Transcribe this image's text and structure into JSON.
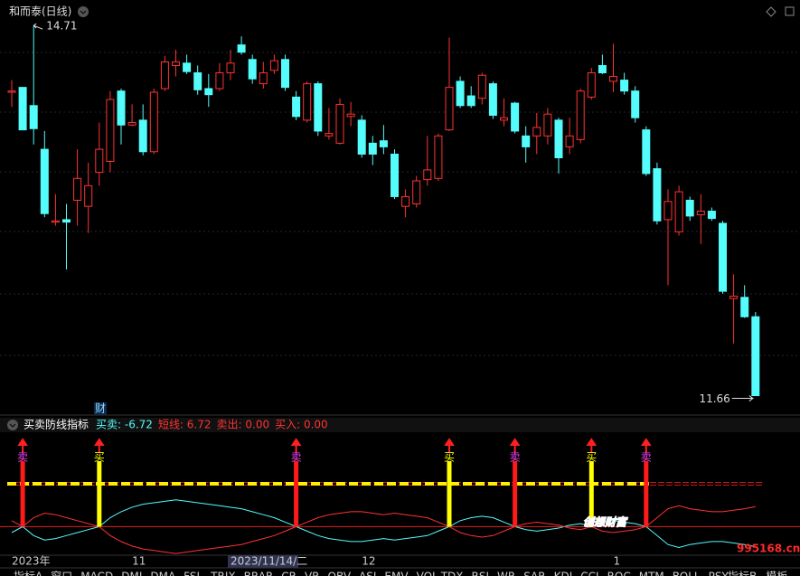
{
  "header": {
    "title": "和而泰(日线)",
    "badge": "财"
  },
  "chart_data": [
    {
      "type": "candlestick",
      "categories": [
        "2023年",
        null,
        null,
        null,
        null,
        null,
        null,
        null,
        null,
        null,
        null,
        "11",
        null,
        null,
        null,
        null,
        null,
        null,
        null,
        null,
        "2023/11/14/二",
        null,
        null,
        null,
        null,
        null,
        null,
        null,
        null,
        null,
        null,
        null,
        "12",
        null,
        null,
        null,
        null,
        null,
        null,
        null,
        null,
        null,
        null,
        null,
        null,
        null,
        null,
        null,
        null,
        null,
        null,
        null,
        null,
        null,
        null,
        "1",
        null,
        null,
        null,
        null,
        null,
        null,
        null,
        null,
        null,
        null,
        null,
        null,
        null
      ],
      "highlight_category": 20,
      "open": [
        14.16,
        14.2,
        14.05,
        13.69,
        13.09,
        13.11,
        13.27,
        13.22,
        13.5,
        13.59,
        14.17,
        13.89,
        13.93,
        13.67,
        14.19,
        14.38,
        14.4,
        14.32,
        14.19,
        14.19,
        14.32,
        14.55,
        14.43,
        14.23,
        14.34,
        14.43,
        14.12,
        13.93,
        14.23,
        13.8,
        13.74,
        13.96,
        13.93,
        13.74,
        13.76,
        13.65,
        13.22,
        13.24,
        13.44,
        13.45,
        13.85,
        14.25,
        14.13,
        14.11,
        14.23,
        13.93,
        14.07,
        13.8,
        13.8,
        13.8,
        13.93,
        13.71,
        13.77,
        14.12,
        14.38,
        14.25,
        14.26,
        14.17,
        13.85,
        13.53,
        13.11,
        13.01,
        13.27,
        13.15,
        13.18,
        13.08,
        12.46,
        12.47,
        12.31
      ],
      "close": [
        14.17,
        13.85,
        13.86,
        13.16,
        13.1,
        13.09,
        13.45,
        13.39,
        13.69,
        14.1,
        13.89,
        13.91,
        13.67,
        14.16,
        14.41,
        14.41,
        14.33,
        14.18,
        14.14,
        14.32,
        14.4,
        14.49,
        14.27,
        14.32,
        14.42,
        14.2,
        13.96,
        14.23,
        13.84,
        13.82,
        14.06,
        13.98,
        13.65,
        13.65,
        13.71,
        13.3,
        13.3,
        13.43,
        13.52,
        13.8,
        14.2,
        14.05,
        14.05,
        14.3,
        13.97,
        13.95,
        13.84,
        13.71,
        13.87,
        13.98,
        13.62,
        13.8,
        14.17,
        14.32,
        14.32,
        14.29,
        14.17,
        13.95,
        13.49,
        13.1,
        13.26,
        13.34,
        13.14,
        13.18,
        13.12,
        12.52,
        12.48,
        12.31,
        11.66
      ],
      "high": [
        14.26,
        14.2,
        14.71,
        13.84,
        13.32,
        13.24,
        13.69,
        13.58,
        13.91,
        14.17,
        14.19,
        14.06,
        14.06,
        14.19,
        14.46,
        14.51,
        14.47,
        14.38,
        14.31,
        14.4,
        14.51,
        14.62,
        14.47,
        14.41,
        14.47,
        14.47,
        14.17,
        14.25,
        14.25,
        14.03,
        14.11,
        14.08,
        13.97,
        13.8,
        13.89,
        13.69,
        13.36,
        13.47,
        13.8,
        13.82,
        14.61,
        14.29,
        14.21,
        14.32,
        14.25,
        14.11,
        14.08,
        13.88,
        13.99,
        14.03,
        13.95,
        13.95,
        14.19,
        14.36,
        14.47,
        14.56,
        14.32,
        14.21,
        13.88,
        13.58,
        13.36,
        13.39,
        13.3,
        13.32,
        13.21,
        13.1,
        12.66,
        12.57,
        12.35
      ],
      "low": [
        14.04,
        13.85,
        13.73,
        13.13,
        13.06,
        12.7,
        13.06,
        13.0,
        13.39,
        13.5,
        13.73,
        13.88,
        13.64,
        13.65,
        14.17,
        14.29,
        14.31,
        14.14,
        14.04,
        14.17,
        14.26,
        14.47,
        14.23,
        14.19,
        14.31,
        14.17,
        13.93,
        13.91,
        13.8,
        13.77,
        13.73,
        13.88,
        13.62,
        13.56,
        13.65,
        13.28,
        13.13,
        13.21,
        13.39,
        13.43,
        13.84,
        14.03,
        14.03,
        14.06,
        13.94,
        13.88,
        13.82,
        13.58,
        13.65,
        13.73,
        13.49,
        13.65,
        13.74,
        14.1,
        14.31,
        14.16,
        14.14,
        13.91,
        13.47,
        13.07,
        12.57,
        12.98,
        13.1,
        12.91,
        13.1,
        12.5,
        12.09,
        12.3,
        11.66
      ],
      "up_color": "#ff3232",
      "down_color": "#54fcfc",
      "ylim": [
        11.53,
        14.92
      ],
      "annotations": [
        14.71,
        11.66
      ]
    },
    {
      "type": "line",
      "title": "买卖防线指标",
      "ylim": [
        -12,
        28
      ],
      "series": [
        {
          "name": "买卖: -6.72",
          "color": "#54fcfc",
          "values": [
            -2,
            0,
            -3,
            -4.5,
            -4,
            -3,
            -2,
            -1,
            0,
            3,
            5,
            6.5,
            7.5,
            8,
            8.5,
            9,
            8.5,
            8,
            7.5,
            7,
            6.5,
            6,
            5,
            4,
            3,
            1.5,
            0,
            -1.5,
            -3,
            -4,
            -4.5,
            -5,
            -5,
            -4.5,
            -4,
            -4.5,
            -4,
            -3.5,
            -3,
            -1.5,
            0,
            2,
            3,
            3.5,
            3,
            1.5,
            0,
            -1,
            -1.5,
            -1,
            -0.5,
            0.5,
            1,
            0,
            1.5,
            2,
            1.5,
            1,
            0,
            -3,
            -6,
            -7,
            -6,
            -5.5,
            -5,
            -5,
            -5.5,
            -6,
            -6.72
          ]
        },
        {
          "name": "短线: 6.72",
          "color": "#ff3232",
          "values": [
            2,
            0,
            3,
            4.5,
            4,
            3,
            2,
            1,
            0,
            -3,
            -5,
            -6.5,
            -7.5,
            -8,
            -8.5,
            -9,
            -8.5,
            -8,
            -7.5,
            -7,
            -6.5,
            -6,
            -5,
            -4,
            -3,
            -1.5,
            0,
            1.5,
            3,
            4,
            4.5,
            5,
            5,
            4.5,
            4,
            4.5,
            4,
            3.5,
            3,
            1.5,
            0,
            -2,
            -3,
            -3.5,
            -3,
            -1.5,
            0,
            1,
            1.5,
            1,
            0.5,
            -0.5,
            -1,
            0,
            -1.5,
            -2,
            -1.5,
            -1,
            0,
            3,
            6,
            7,
            6,
            5.5,
            5,
            5,
            5.5,
            6,
            6.72
          ]
        }
      ],
      "extra_legend": [
        {
          "text": "卖出: 0.00",
          "color": "#ff3232"
        },
        {
          "text": "买入: 0.00",
          "color": "#ff3232"
        }
      ],
      "signals": [
        {
          "index": 1,
          "label": "卖",
          "bar_color": "#ff1a1a",
          "label_color": "#ff44ff"
        },
        {
          "index": 8,
          "label": "买",
          "bar_color": "#ffff00",
          "label_color": "#ffff00"
        },
        {
          "index": 26,
          "label": "卖",
          "bar_color": "#ff1a1a",
          "label_color": "#ff44ff"
        },
        {
          "index": 40,
          "label": "买",
          "bar_color": "#ffff00",
          "label_color": "#ffff00"
        },
        {
          "index": 46,
          "label": "卖",
          "bar_color": "#ff1a1a",
          "label_color": "#ff44ff"
        },
        {
          "index": 53,
          "label": "买",
          "bar_color": "#ffff00",
          "label_color": "#ffff00"
        },
        {
          "index": 58,
          "label": "卖",
          "bar_color": "#ff1a1a",
          "label_color": "#ff44ff"
        }
      ]
    }
  ],
  "tabs": [
    "指标A",
    "窗口",
    "MACD",
    "DMI",
    "DMA",
    "FSL",
    "TRIX",
    "BRAR",
    "CR",
    "VR",
    "OBV",
    "ASI",
    "EMV",
    "VOL-TDX",
    "RSI",
    "WR",
    "SAR",
    "KDJ",
    "CCI",
    "ROC",
    "MTM",
    "BOLL",
    "PSY"
  ],
  "right_tabs": [
    "指标B",
    "模板"
  ],
  "watermark": {
    "text": "创想财富",
    "url": "995168.cn"
  }
}
